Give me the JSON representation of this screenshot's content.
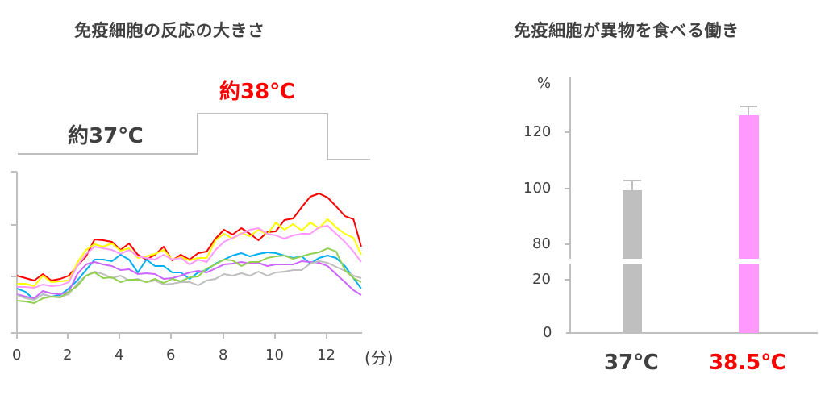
{
  "chart_data": [
    {
      "type": "line",
      "title": "免疫細胞の反応の大きさ",
      "xlabel": "(分)",
      "ylabel": "",
      "x_ticks": [
        0,
        2,
        4,
        6,
        8,
        10,
        12
      ],
      "xlim": [
        0,
        13.3
      ],
      "y_ticks_unlabeled": 4,
      "grid": false,
      "annotations": [
        {
          "text": "約37℃",
          "color": "#404040",
          "period": [
            0,
            7
          ]
        },
        {
          "text": "約38℃",
          "color": "#ff0000",
          "period": [
            7,
            12
          ]
        }
      ],
      "temperature_step": {
        "low_until": 7,
        "high_from": 7,
        "high_until": 12
      },
      "x": [
        0,
        0.33,
        0.67,
        1,
        1.33,
        1.67,
        2,
        2.33,
        2.67,
        3,
        3.33,
        3.67,
        4,
        4.33,
        4.67,
        5,
        5.33,
        5.67,
        6,
        6.33,
        6.67,
        7,
        7.33,
        7.67,
        8,
        8.33,
        8.67,
        9,
        9.33,
        9.67,
        10,
        10.33,
        10.67,
        11,
        11.33,
        11.67,
        12,
        12.33,
        12.67,
        13,
        13.3
      ],
      "series": [
        {
          "name": "red",
          "color": "#ff0000",
          "values": [
            342,
            345,
            348,
            340,
            348,
            346,
            342,
            330,
            318,
            297,
            298,
            300,
            310,
            302,
            316,
            322,
            316,
            306,
            323,
            316,
            322,
            314,
            312,
            296,
            285,
            291,
            283,
            290,
            298,
            288,
            287,
            273,
            271,
            257,
            244,
            240,
            245,
            256,
            268,
            272,
            306
          ]
        },
        {
          "name": "yellow",
          "color": "#ffff00",
          "values": [
            352,
            352,
            355,
            342,
            350,
            349,
            348,
            326,
            310,
            303,
            306,
            302,
            311,
            308,
            320,
            318,
            315,
            310,
            322,
            319,
            323,
            320,
            320,
            298,
            290,
            296,
            289,
            293,
            285,
            291,
            276,
            285,
            278,
            286,
            276,
            283,
            272,
            282,
            290,
            295,
            316
          ]
        },
        {
          "name": "pink",
          "color": "#ff99ff",
          "values": [
            356,
            356,
            357,
            353,
            355,
            354,
            350,
            330,
            315,
            306,
            308,
            310,
            315,
            310,
            318,
            320,
            322,
            316,
            322,
            320,
            328,
            322,
            325,
            310,
            300,
            295,
            290,
            285,
            283,
            290,
            292,
            296,
            292,
            290,
            290,
            282,
            280,
            290,
            300,
            312,
            325
          ]
        },
        {
          "name": "blue",
          "color": "#00b0f0",
          "values": [
            358,
            362,
            372,
            365,
            368,
            366,
            358,
            348,
            335,
            322,
            322,
            324,
            316,
            322,
            338,
            322,
            330,
            330,
            338,
            338,
            346,
            338,
            335,
            327,
            322,
            317,
            314,
            318,
            315,
            313,
            314,
            317,
            320,
            318,
            327,
            320,
            317,
            320,
            330,
            345,
            358
          ]
        },
        {
          "name": "purple",
          "color": "#cc66ff",
          "values": [
            365,
            368,
            370,
            361,
            364,
            365,
            362,
            340,
            328,
            325,
            328,
            330,
            335,
            334,
            340,
            339,
            340,
            346,
            345,
            342,
            338,
            336,
            338,
            333,
            328,
            327,
            325,
            327,
            326,
            330,
            328,
            328,
            328,
            324,
            325,
            326,
            330,
            340,
            350,
            360,
            366
          ]
        },
        {
          "name": "gray",
          "color": "#bfbfbf",
          "values": [
            366,
            370,
            372,
            365,
            368,
            368,
            365,
            352,
            342,
            337,
            340,
            345,
            342,
            348,
            346,
            350,
            348,
            353,
            352,
            350,
            350,
            354,
            348,
            346,
            340,
            342,
            339,
            342,
            337,
            342,
            338,
            337,
            335,
            335,
            327,
            324,
            326,
            331,
            336,
            342,
            345
          ]
        },
        {
          "name": "green",
          "color": "#92d050",
          "values": [
            373,
            374,
            376,
            370,
            368,
            369,
            362,
            355,
            342,
            338,
            345,
            344,
            350,
            347,
            347,
            350,
            346,
            351,
            346,
            349,
            344,
            343,
            333,
            328,
            322,
            323,
            330,
            325,
            325,
            320,
            318,
            317,
            321,
            318,
            315,
            313,
            308,
            312,
            335,
            345,
            350
          ]
        }
      ]
    },
    {
      "type": "bar",
      "title": "免疫細胞が異物を食べる働き",
      "ylabel": "%",
      "categories": [
        "37℃",
        "38.5℃"
      ],
      "category_colors": [
        "#404040",
        "#ff0000"
      ],
      "values": [
        99.5,
        126.3
      ],
      "error_upper": [
        103,
        129.2
      ],
      "bar_colors": [
        "#bfbfbf",
        "#ff99ff"
      ],
      "y_ticks": [
        0,
        20,
        80,
        100,
        120
      ],
      "axis_break": [
        25,
        75
      ],
      "ylim": [
        0,
        130
      ]
    }
  ],
  "left": {
    "title": "免疫細胞の反応の大きさ",
    "temp_low_label": "約37℃",
    "temp_high_label": "約38℃",
    "x_unit": "(分)",
    "x_ticks": [
      "0",
      "2",
      "4",
      "6",
      "8",
      "10",
      "12"
    ]
  },
  "right": {
    "title": "免疫細胞が異物を食べる働き",
    "y_unit": "%",
    "y_ticks": [
      "120",
      "100",
      "80",
      "20",
      "0"
    ],
    "categories": [
      "37℃",
      "38.5℃"
    ]
  }
}
